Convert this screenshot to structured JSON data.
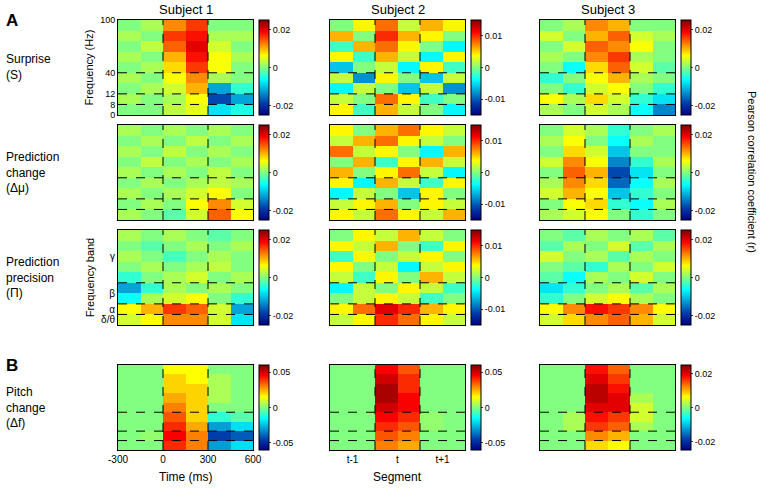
{
  "figure": {
    "columns": [
      "Subject 1",
      "Subject 2",
      "Subject 3"
    ],
    "rows": [
      {
        "panel": "A",
        "label": [
          "Surprise",
          "(S)"
        ]
      },
      {
        "label": [
          "Prediction",
          "change",
          "(Δμ)"
        ]
      },
      {
        "label": [
          "Prediction",
          "precision",
          "(Π)"
        ]
      },
      {
        "panel": "B",
        "label": [
          "Pitch",
          "change",
          "(Δf)"
        ]
      }
    ],
    "colorbar_title": "Pearson correlation coefficient (r)",
    "x_bins": [
      -300,
      -150,
      0,
      150,
      300,
      450,
      600
    ],
    "xlim": [
      -300,
      600
    ],
    "y_bins": [
      0,
      8,
      12,
      26,
      40,
      52,
      64,
      76,
      88,
      100
    ],
    "time_markers": [
      0,
      300
    ],
    "freq_markers": [
      8,
      12,
      40
    ]
  },
  "chart_data": [
    {
      "type": "heatmap",
      "yticks": [
        0,
        8,
        12,
        40,
        100
      ],
      "y_label": "Frequency (Hz)",
      "zlim": [
        -0.025,
        0.025
      ],
      "zticks": [
        -0.02,
        0,
        0.02
      ],
      "z": [
        [
          0,
          0,
          0.003,
          0.005,
          -0.008,
          -0.005
        ],
        [
          0.002,
          0,
          0.002,
          0.006,
          -0.018,
          -0.012
        ],
        [
          0,
          0.002,
          0.004,
          0.01,
          -0.012,
          -0.004
        ],
        [
          0.002,
          0,
          0.006,
          0.012,
          0.002,
          0
        ],
        [
          0,
          0.002,
          0.008,
          0.016,
          0.006,
          0
        ],
        [
          0.002,
          0,
          0.01,
          0.018,
          0.006,
          0.002
        ],
        [
          0,
          0.003,
          0.014,
          0.02,
          0.004,
          0
        ],
        [
          0.002,
          0,
          0.016,
          0.018,
          0.002,
          0.002
        ],
        [
          0,
          0.002,
          0.012,
          0.016,
          0,
          0
        ]
      ]
    },
    {
      "type": "heatmap",
      "zlim": [
        -0.015,
        0.015
      ],
      "zticks": [
        -0.01,
        0,
        0.01
      ],
      "z": [
        [
          0.004,
          -0.002,
          0.006,
          0.002,
          0,
          -0.004
        ],
        [
          0.002,
          0,
          0.008,
          0.004,
          -0.002,
          0
        ],
        [
          -0.004,
          0.002,
          0,
          -0.006,
          0.002,
          -0.008
        ],
        [
          0.002,
          -0.008,
          0.004,
          0,
          -0.006,
          0.002
        ],
        [
          -0.006,
          0,
          0.002,
          -0.004,
          0.004,
          -0.002
        ],
        [
          0.004,
          -0.002,
          0.006,
          0.002,
          -0.004,
          0.004
        ],
        [
          -0.002,
          0.006,
          0.008,
          0.004,
          0,
          -0.004
        ],
        [
          0.006,
          0,
          0.01,
          0.006,
          0.004,
          0
        ],
        [
          0,
          0.004,
          0.008,
          0.002,
          0.006,
          0.004
        ]
      ]
    },
    {
      "type": "heatmap",
      "zlim": [
        -0.025,
        0.025
      ],
      "zticks": [
        -0.02,
        0,
        0.02
      ],
      "z": [
        [
          0.002,
          0,
          0.004,
          0.002,
          -0.006,
          -0.014
        ],
        [
          0.006,
          0.002,
          0.008,
          0.004,
          -0.004,
          -0.008
        ],
        [
          0,
          -0.004,
          0.004,
          0.006,
          0,
          -0.004
        ],
        [
          -0.004,
          0,
          0.006,
          0.01,
          0.002,
          0
        ],
        [
          0,
          -0.006,
          0.008,
          0.014,
          0.004,
          -0.002
        ],
        [
          0.002,
          0,
          0.012,
          0.016,
          0.002,
          0
        ],
        [
          0,
          0.004,
          0.014,
          0.012,
          0.006,
          0
        ],
        [
          0.004,
          0,
          0.01,
          0.014,
          0.004,
          0.002
        ],
        [
          0,
          0.002,
          0.012,
          0.01,
          0,
          0
        ]
      ]
    },
    {
      "type": "heatmap",
      "zlim": [
        -0.025,
        0.025
      ],
      "zticks": [
        -0.02,
        0,
        0.02
      ],
      "z": [
        [
          0.002,
          0,
          -0.002,
          0.004,
          0.014,
          0.006
        ],
        [
          0,
          0.002,
          0,
          0.006,
          0.012,
          0.004
        ],
        [
          0.002,
          0,
          0.002,
          0.004,
          0.006,
          0
        ],
        [
          0,
          0.002,
          0,
          0.002,
          0.003,
          0.002
        ],
        [
          0.002,
          0,
          0.002,
          0,
          0.003,
          0
        ],
        [
          0,
          0.003,
          0,
          0.002,
          0,
          0.002
        ],
        [
          0.002,
          0,
          0.003,
          0,
          0.002,
          0
        ],
        [
          0,
          0.002,
          0,
          0.003,
          0,
          0.002
        ],
        [
          0.002,
          0,
          0.002,
          0,
          0.002,
          0
        ]
      ]
    },
    {
      "type": "heatmap",
      "zlim": [
        -0.015,
        0.015
      ],
      "zticks": [
        -0.01,
        0,
        0.01
      ],
      "z": [
        [
          0.004,
          0.002,
          0.008,
          0.004,
          0.002,
          0.006
        ],
        [
          0.002,
          0.004,
          0.006,
          0,
          0.004,
          0.002
        ],
        [
          -0.004,
          0.002,
          0,
          -0.006,
          0.004,
          0
        ],
        [
          0.004,
          -0.004,
          0.006,
          0.002,
          -0.002,
          0.004
        ],
        [
          0.006,
          0,
          0.004,
          0.008,
          0.002,
          -0.004
        ],
        [
          0,
          0.006,
          -0.002,
          0.004,
          0.006,
          0.002
        ],
        [
          0.008,
          0.002,
          0.004,
          0,
          -0.004,
          0.006
        ],
        [
          0.002,
          0.006,
          0.008,
          0.004,
          0.002,
          0
        ],
        [
          0.004,
          0,
          0.006,
          0.008,
          0.004,
          0.002
        ]
      ]
    },
    {
      "type": "heatmap",
      "zlim": [
        -0.025,
        0.025
      ],
      "zticks": [
        -0.02,
        0,
        0.02
      ],
      "z": [
        [
          0.002,
          0.004,
          0.006,
          0,
          -0.004,
          0
        ],
        [
          0,
          0.006,
          0.008,
          -0.004,
          -0.006,
          0.002
        ],
        [
          0.004,
          0.01,
          0.006,
          -0.01,
          -0.004,
          0
        ],
        [
          0.002,
          0.012,
          0.008,
          -0.016,
          -0.006,
          0.002
        ],
        [
          0,
          0.014,
          0.01,
          -0.018,
          -0.008,
          0
        ],
        [
          0.004,
          0.012,
          0.006,
          -0.014,
          -0.004,
          0.002
        ],
        [
          0,
          0.008,
          0.004,
          -0.01,
          0,
          0
        ],
        [
          0.002,
          0.006,
          0,
          -0.006,
          0.002,
          0
        ],
        [
          0,
          0.004,
          0.002,
          -0.004,
          0,
          0.002
        ]
      ]
    },
    {
      "type": "heatmap",
      "y_label": "Frequency band",
      "band_ticks": [
        {
          "label": "γ",
          "from": 40,
          "to": 100
        },
        {
          "label": "β",
          "from": 12,
          "to": 40
        },
        {
          "label": "α",
          "from": 8,
          "to": 12
        },
        {
          "label": "δ/θ",
          "from": 0,
          "to": 8
        }
      ],
      "zlim": [
        -0.025,
        0.025
      ],
      "zticks": [
        -0.02,
        0,
        0.02
      ],
      "z": [
        [
          0.004,
          0.006,
          0.012,
          0.012,
          0.004,
          -0.008
        ],
        [
          0.006,
          0.01,
          0.016,
          0.014,
          0.004,
          -0.012
        ],
        [
          -0.006,
          0.002,
          0.004,
          0.006,
          0,
          -0.004
        ],
        [
          -0.012,
          -0.004,
          0.002,
          0,
          0.002,
          0
        ],
        [
          -0.004,
          0,
          0.002,
          0.004,
          0,
          0.002
        ],
        [
          0,
          0.002,
          0,
          0.002,
          0.003,
          0
        ],
        [
          0.002,
          0,
          -0.003,
          0,
          0.002,
          0
        ],
        [
          0,
          -0.002,
          0,
          0.002,
          0,
          0.002
        ],
        [
          0.002,
          0,
          0.002,
          0,
          -0.002,
          0
        ]
      ]
    },
    {
      "type": "heatmap",
      "zlim": [
        -0.015,
        0.015
      ],
      "zticks": [
        -0.01,
        0,
        0.01
      ],
      "z": [
        [
          0.002,
          0.004,
          0.01,
          0.008,
          0.004,
          0.002
        ],
        [
          0.004,
          0.008,
          0.012,
          0.01,
          0.006,
          0.004
        ],
        [
          0,
          0.002,
          0.004,
          0.002,
          -0.002,
          0
        ],
        [
          -0.004,
          0.002,
          0,
          0.004,
          0.002,
          -0.002
        ],
        [
          0.002,
          -0.002,
          0.004,
          0,
          0.006,
          0.002
        ],
        [
          0.004,
          0,
          0.002,
          -0.004,
          0.002,
          0.004
        ],
        [
          -0.002,
          0.004,
          0,
          0.002,
          0.004,
          0
        ],
        [
          0.004,
          0.002,
          0.006,
          0,
          -0.002,
          0.004
        ],
        [
          0,
          0.004,
          0.002,
          0.006,
          0.002,
          0
        ]
      ]
    },
    {
      "type": "heatmap",
      "zlim": [
        -0.025,
        0.025
      ],
      "zticks": [
        -0.02,
        0,
        0.02
      ],
      "z": [
        [
          0.004,
          0.008,
          0.012,
          0.014,
          0.01,
          0.004
        ],
        [
          0.006,
          0.012,
          0.018,
          0.016,
          0.012,
          0.006
        ],
        [
          -0.004,
          0,
          0.004,
          0.006,
          0.002,
          0
        ],
        [
          -0.008,
          -0.004,
          0,
          0.002,
          -0.002,
          0.002
        ],
        [
          -0.002,
          -0.006,
          0.002,
          0,
          0.004,
          0
        ],
        [
          0,
          -0.002,
          -0.004,
          0.002,
          0,
          0.004
        ],
        [
          0.004,
          0,
          0.002,
          -0.002,
          0.002,
          0
        ],
        [
          -0.002,
          0.002,
          0,
          0.004,
          -0.002,
          0.002
        ],
        [
          0,
          -0.002,
          0.002,
          0,
          0.002,
          -0.002
        ]
      ]
    },
    {
      "type": "heatmap",
      "xticks": [
        -300,
        0,
        300,
        600
      ],
      "x_label": "Time (ms)",
      "zlim": [
        -0.06,
        0.06
      ],
      "zticks": [
        -0.05,
        0,
        0.05
      ],
      "z": [
        [
          0,
          0,
          0.04,
          0.03,
          -0.03,
          -0.02
        ],
        [
          0,
          0.002,
          0.045,
          0.03,
          -0.045,
          -0.04
        ],
        [
          0,
          0,
          0.04,
          0.025,
          -0.03,
          -0.02
        ],
        [
          0,
          0,
          0.035,
          0.02,
          -0.01,
          -0.005
        ],
        [
          0,
          0,
          0.03,
          0.02,
          0,
          0
        ],
        [
          0,
          0,
          0.025,
          0.02,
          0.005,
          0
        ],
        [
          0,
          0,
          0.02,
          0.02,
          0.005,
          0
        ],
        [
          0,
          0,
          0.02,
          0.015,
          0.005,
          0
        ],
        [
          0,
          0,
          0.015,
          0.015,
          0,
          0
        ]
      ]
    },
    {
      "type": "heatmap",
      "xticks": [
        {
          "value": -150,
          "label": "t-1"
        },
        {
          "value": 150,
          "label": "t"
        },
        {
          "value": 450,
          "label": "t+1"
        }
      ],
      "x_label": "Segment",
      "zlim": [
        -0.06,
        0.06
      ],
      "zticks": [
        -0.05,
        0,
        0.05
      ],
      "z": [
        [
          0,
          0,
          0.03,
          0.025,
          0,
          0
        ],
        [
          0,
          0,
          0.035,
          0.03,
          0,
          0
        ],
        [
          0,
          0,
          0.04,
          0.035,
          0.002,
          0
        ],
        [
          0,
          0,
          0.045,
          0.04,
          0.002,
          0
        ],
        [
          0,
          0,
          0.05,
          0.045,
          0,
          0
        ],
        [
          0,
          0,
          0.055,
          0.045,
          0,
          0
        ],
        [
          0,
          0,
          0.055,
          0.04,
          0,
          0
        ],
        [
          0,
          0,
          0.05,
          0.04,
          0,
          0
        ],
        [
          0,
          0,
          0.045,
          0.035,
          0,
          0
        ]
      ]
    },
    {
      "type": "heatmap",
      "zlim": [
        -0.025,
        0.025
      ],
      "zticks": [
        -0.02,
        0,
        0.02
      ],
      "z": [
        [
          0,
          0,
          0.008,
          0.006,
          0,
          0
        ],
        [
          0,
          0,
          0.012,
          0.01,
          0,
          0
        ],
        [
          0,
          0.002,
          0.016,
          0.014,
          0.002,
          0
        ],
        [
          0,
          0.002,
          0.018,
          0.016,
          0.004,
          0
        ],
        [
          0,
          0,
          0.02,
          0.02,
          0.004,
          0
        ],
        [
          0,
          0,
          0.022,
          0.02,
          0.002,
          0
        ],
        [
          0,
          0,
          0.022,
          0.018,
          0,
          0
        ],
        [
          0,
          0,
          0.02,
          0.016,
          0,
          0
        ],
        [
          0,
          0,
          0.018,
          0.014,
          0,
          0
        ]
      ]
    }
  ]
}
